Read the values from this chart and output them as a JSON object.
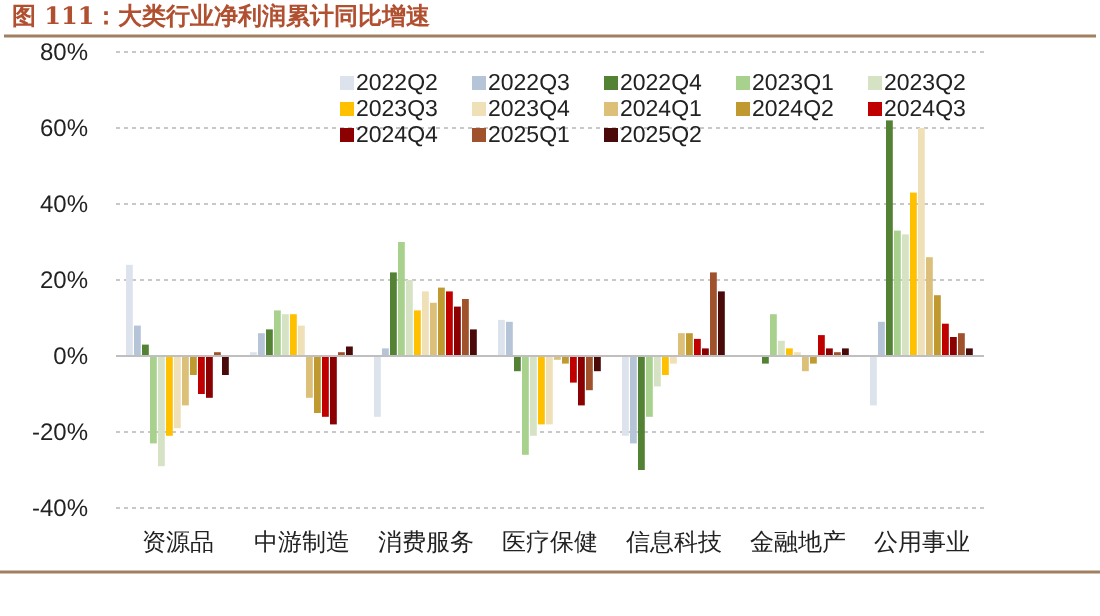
{
  "chart_data": {
    "type": "bar",
    "title": "图 111：大类行业净利润累计同比增速",
    "categories": [
      "资源品",
      "中游制造",
      "消费服务",
      "医疗保健",
      "信息科技",
      "金融地产",
      "公用事业"
    ],
    "ylim": [
      -40,
      80
    ],
    "yticks": [
      {
        "value": -40,
        "label": "-40%"
      },
      {
        "value": -20,
        "label": "-20%"
      },
      {
        "value": 0,
        "label": "0%"
      },
      {
        "value": 20,
        "label": "20%"
      },
      {
        "value": 40,
        "label": "40%"
      },
      {
        "value": 60,
        "label": "60%"
      },
      {
        "value": 80,
        "label": "80%"
      }
    ],
    "grid": "y",
    "legend": "top",
    "series": [
      {
        "name": "2022Q2",
        "color": "#dde3ec",
        "values": [
          24,
          1,
          -16,
          9.5,
          -21,
          0,
          -13
        ]
      },
      {
        "name": "2022Q3",
        "color": "#b6c4d8",
        "values": [
          8,
          6,
          2,
          9,
          -23,
          0,
          9
        ]
      },
      {
        "name": "2022Q4",
        "color": "#548235",
        "values": [
          3,
          7,
          22,
          -4,
          -30,
          -2,
          62
        ]
      },
      {
        "name": "2023Q1",
        "color": "#a9d18e",
        "values": [
          -23,
          12,
          30,
          -26,
          -16,
          11,
          33
        ]
      },
      {
        "name": "2023Q2",
        "color": "#d6e2c4",
        "values": [
          -29,
          11,
          20,
          -21,
          -8,
          4,
          32
        ]
      },
      {
        "name": "2023Q3",
        "color": "#ffc000",
        "values": [
          -21,
          11,
          12,
          -18,
          -5,
          2,
          43
        ]
      },
      {
        "name": "2023Q4",
        "color": "#f0e0b8",
        "values": [
          -19,
          8,
          17,
          -18,
          -2,
          1,
          60
        ]
      },
      {
        "name": "2024Q1",
        "color": "#dcc07a",
        "values": [
          -13,
          -11,
          14,
          -1,
          6,
          -4,
          26
        ]
      },
      {
        "name": "2024Q2",
        "color": "#c09a30",
        "values": [
          -5,
          -15,
          18,
          -2,
          6,
          -2,
          16
        ]
      },
      {
        "name": "2024Q3",
        "color": "#c00000",
        "values": [
          -10,
          -16,
          17,
          -7,
          4.5,
          5.5,
          8.5
        ]
      },
      {
        "name": "2024Q4",
        "color": "#8b0000",
        "values": [
          -11,
          -18,
          13,
          -13,
          2,
          2,
          5
        ]
      },
      {
        "name": "2025Q1",
        "color": "#a0522d",
        "values": [
          1,
          1,
          15,
          -9,
          22,
          1,
          6
        ]
      },
      {
        "name": "2025Q2",
        "color": "#4a0a0a",
        "values": [
          -5,
          2.5,
          7,
          -4,
          17,
          2,
          2
        ]
      }
    ]
  }
}
